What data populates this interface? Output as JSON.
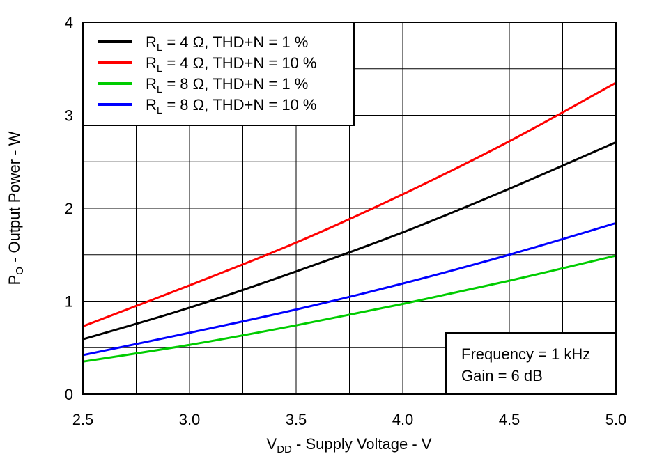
{
  "chart_data": {
    "type": "line",
    "xlabel": {
      "main": "V",
      "sub": "DD",
      "rest": " - Supply Voltage - V"
    },
    "ylabel": {
      "main": "P",
      "sub": "O",
      "rest": " - Output Power - W"
    },
    "xlim": [
      2.5,
      5.0
    ],
    "ylim": [
      0,
      4
    ],
    "xticks": [
      "2.5",
      "3.0",
      "3.5",
      "4.0",
      "4.5",
      "5.0"
    ],
    "yticks": [
      "0",
      "1",
      "2",
      "3",
      "4"
    ],
    "grid": true,
    "legend_position": "top-left",
    "x": [
      2.5,
      3.0,
      3.5,
      4.0,
      4.5,
      5.0
    ],
    "series": [
      {
        "name": {
          "main": "R",
          "sub": "L",
          "rest": " = 4 Ω, THD+N = 1 %"
        },
        "color": "#000000",
        "values": [
          0.59,
          0.93,
          1.32,
          1.74,
          2.21,
          2.71
        ]
      },
      {
        "name": {
          "main": "R",
          "sub": "L",
          "rest": " = 4 Ω, THD+N = 10 %"
        },
        "color": "#ff0000",
        "values": [
          0.73,
          1.17,
          1.63,
          2.15,
          2.72,
          3.35
        ]
      },
      {
        "name": {
          "main": "R",
          "sub": "L",
          "rest": " = 8 Ω, THD+N = 1 %"
        },
        "color": "#00cc00",
        "values": [
          0.35,
          0.53,
          0.74,
          0.97,
          1.22,
          1.49
        ]
      },
      {
        "name": {
          "main": "R",
          "sub": "L",
          "rest": " = 8 Ω, THD+N = 10 %"
        },
        "color": "#0000ff",
        "values": [
          0.42,
          0.66,
          0.91,
          1.19,
          1.5,
          1.84
        ]
      }
    ],
    "annotations": [
      "Frequency = 1 kHz",
      "Gain = 6 dB"
    ]
  }
}
